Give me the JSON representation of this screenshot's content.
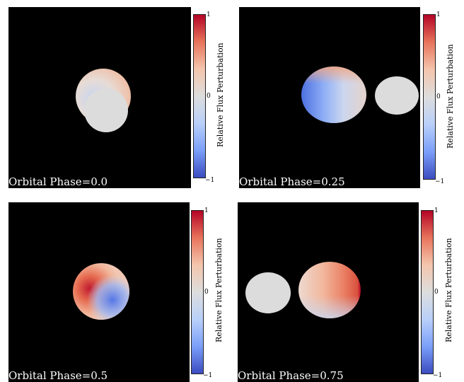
{
  "panels": [
    {
      "phase_label": "Orbital Phase=0.0"
    },
    {
      "phase_label": "Orbital Phase=0.25"
    },
    {
      "phase_label": "Orbital Phase=0.5"
    },
    {
      "phase_label": "Orbital Phase=0.75"
    }
  ],
  "colorbar": {
    "title": "Relative Flux Perturbation",
    "tick_max": "1",
    "tick_mid": "0",
    "tick_min": "−1",
    "colormap": [
      "#b40426",
      "#e7745b",
      "#f4c5ad",
      "#dddddd",
      "#b9d0f9",
      "#7b9ff9",
      "#3b4cc0"
    ]
  },
  "companion_color": "#dcdcdc",
  "background_color": "#000000"
}
